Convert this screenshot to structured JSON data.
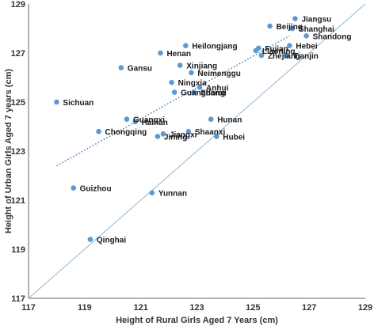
{
  "chart_data": {
    "type": "scatter",
    "xlabel": "Height of Rural Girls Aged 7 Years (cm)",
    "ylabel": "Height of Urban Girls Aged 7 years (cm)",
    "xlim": [
      117,
      129
    ],
    "ylim": [
      117,
      129
    ],
    "xticks": [
      117,
      119,
      121,
      123,
      125,
      127,
      129
    ],
    "yticks": [
      117,
      119,
      121,
      123,
      125,
      127,
      129
    ],
    "grid": false,
    "point_color": "#5b9bd5",
    "line_color": "#8fb8d8",
    "trend_color": "#3f7fbf",
    "reference_line": [
      [
        117,
        117
      ],
      [
        129,
        129
      ]
    ],
    "trend_line": [
      [
        118.0,
        122.4
      ],
      [
        126.3,
        127.7
      ]
    ],
    "points": [
      {
        "label": "Jiangsu",
        "x": 126.5,
        "y": 128.4
      },
      {
        "label": "Beijing",
        "x": 125.6,
        "y": 128.1
      },
      {
        "label": "Shanghai",
        "x": 126.4,
        "y": 128.0
      },
      {
        "label": "Shandong",
        "x": 126.9,
        "y": 127.7
      },
      {
        "label": "Heilongjang",
        "x": 122.6,
        "y": 127.3
      },
      {
        "label": "Fujian",
        "x": 125.2,
        "y": 127.2
      },
      {
        "label": "Hebei",
        "x": 126.3,
        "y": 127.3
      },
      {
        "label": "Liaoning",
        "x": 125.1,
        "y": 127.1
      },
      {
        "label": "Henan",
        "x": 121.7,
        "y": 127.0
      },
      {
        "label": "Tianjin",
        "x": 126.2,
        "y": 126.9
      },
      {
        "label": "Zhejiang",
        "x": 125.3,
        "y": 126.9
      },
      {
        "label": "Gansu",
        "x": 120.3,
        "y": 126.4
      },
      {
        "label": "Xinjiang",
        "x": 122.4,
        "y": 126.5
      },
      {
        "label": "Neimenggu",
        "x": 122.8,
        "y": 126.2
      },
      {
        "label": "Ningxia",
        "x": 122.1,
        "y": 125.8
      },
      {
        "label": "Anhui",
        "x": 123.1,
        "y": 125.6
      },
      {
        "label": "Guangdong",
        "x": 122.2,
        "y": 125.4
      },
      {
        "label": "Shanxi",
        "x": 122.9,
        "y": 125.4
      },
      {
        "label": "Sichuan",
        "x": 118.0,
        "y": 125.0
      },
      {
        "label": "Guangxi",
        "x": 120.5,
        "y": 124.3
      },
      {
        "label": "Hainan",
        "x": 120.8,
        "y": 124.2
      },
      {
        "label": "Hunan",
        "x": 123.5,
        "y": 124.3
      },
      {
        "label": "Chongqing",
        "x": 119.5,
        "y": 123.8
      },
      {
        "label": "Jiangxi",
        "x": 121.8,
        "y": 123.7
      },
      {
        "label": "Shaanxi",
        "x": 122.7,
        "y": 123.8
      },
      {
        "label": "Jining",
        "x": 121.6,
        "y": 123.6
      },
      {
        "label": "Hubei",
        "x": 123.7,
        "y": 123.6
      },
      {
        "label": "Guizhou",
        "x": 118.6,
        "y": 121.5
      },
      {
        "label": "Yunnan",
        "x": 121.4,
        "y": 121.3
      },
      {
        "label": "Qinghai",
        "x": 119.2,
        "y": 119.4
      }
    ]
  }
}
